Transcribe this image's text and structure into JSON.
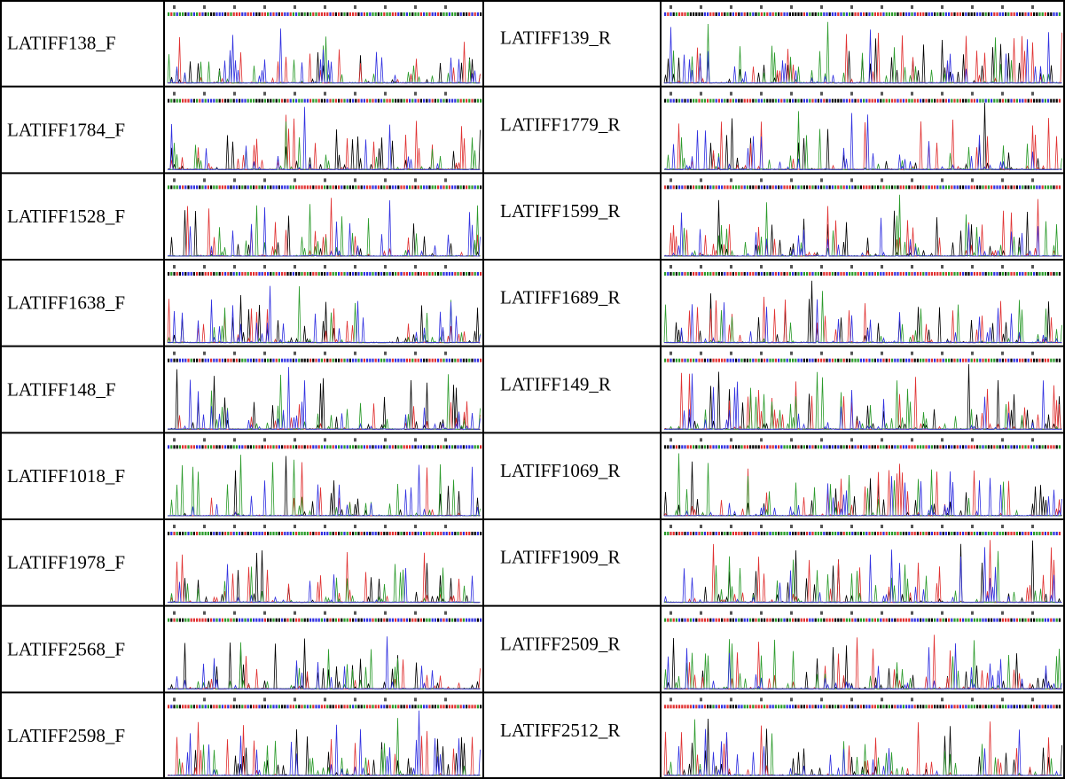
{
  "rows": [
    {
      "left": "LATIFF138_F",
      "right": "LATIFF139_R"
    },
    {
      "left": "LATIFF1784_F",
      "right": "LATIFF1779_R"
    },
    {
      "left": "LATIFF1528_F",
      "right": "LATIFF1599_R"
    },
    {
      "left": "LATIFF1638_F",
      "right": "LATIFF1689_R"
    },
    {
      "left": "LATIFF148_F",
      "right": "LATIFF149_R"
    },
    {
      "left": "LATIFF1018_F",
      "right": "LATIFF1069_R"
    },
    {
      "left": "LATIFF1978_F",
      "right": "LATIFF1909_R"
    },
    {
      "left": "LATIFF2568_F",
      "right": "LATIFF2509_R"
    },
    {
      "left": "LATIFF2598_F",
      "right": "LATIFF2512_R"
    }
  ]
}
